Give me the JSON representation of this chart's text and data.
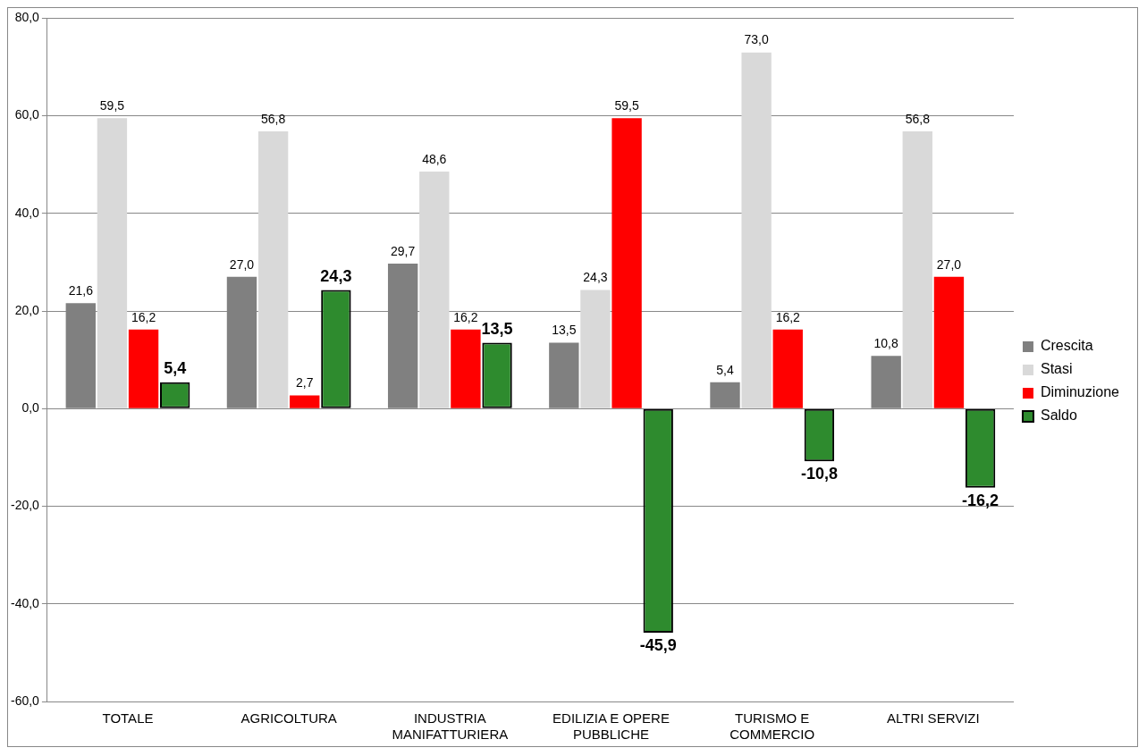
{
  "chart_data": {
    "type": "bar",
    "categories": [
      "TOTALE",
      "AGRICOLTURA",
      "INDUSTRIA MANIFATTURIERA",
      "EDILIZIA E OPERE PUBBLICHE",
      "TURISMO E COMMERCIO",
      "ALTRI SERVIZI"
    ],
    "series": [
      {
        "name": "Crescita",
        "color": "#808080",
        "values": [
          21.6,
          27.0,
          29.7,
          13.5,
          5.4,
          10.8
        ],
        "value_labels": [
          "21,6",
          "27,0",
          "29,7",
          "13,5",
          "5,4",
          "10,8"
        ]
      },
      {
        "name": "Stasi",
        "color": "#d9d9d9",
        "values": [
          59.5,
          56.8,
          48.6,
          24.3,
          73.0,
          56.8
        ],
        "value_labels": [
          "59,5",
          "56,8",
          "48,6",
          "24,3",
          "73,0",
          "56,8"
        ]
      },
      {
        "name": "Diminuzione",
        "color": "#ff0000",
        "values": [
          16.2,
          2.7,
          16.2,
          59.5,
          16.2,
          27.0
        ],
        "value_labels": [
          "16,2",
          "2,7",
          "16,2",
          "59,5",
          "16,2",
          "27,0"
        ]
      },
      {
        "name": "Saldo",
        "color": "#2e8b2e",
        "values": [
          5.4,
          24.3,
          13.5,
          -45.9,
          -10.8,
          -16.2
        ],
        "value_labels": [
          "5,4",
          "24,3",
          "13,5",
          "-45,9",
          "-10,8",
          "-16,2"
        ]
      }
    ],
    "ylim": [
      -60,
      80
    ],
    "yticks": [
      {
        "value": -60,
        "label": "-60,0"
      },
      {
        "value": -40,
        "label": "-40,0"
      },
      {
        "value": -20,
        "label": "-20,0"
      },
      {
        "value": 0,
        "label": "0,0"
      },
      {
        "value": 20,
        "label": "20,0"
      },
      {
        "value": 40,
        "label": "40,0"
      },
      {
        "value": 60,
        "label": "60,0"
      },
      {
        "value": 80,
        "label": "80,0"
      }
    ],
    "grid": "y",
    "legend": "right"
  }
}
